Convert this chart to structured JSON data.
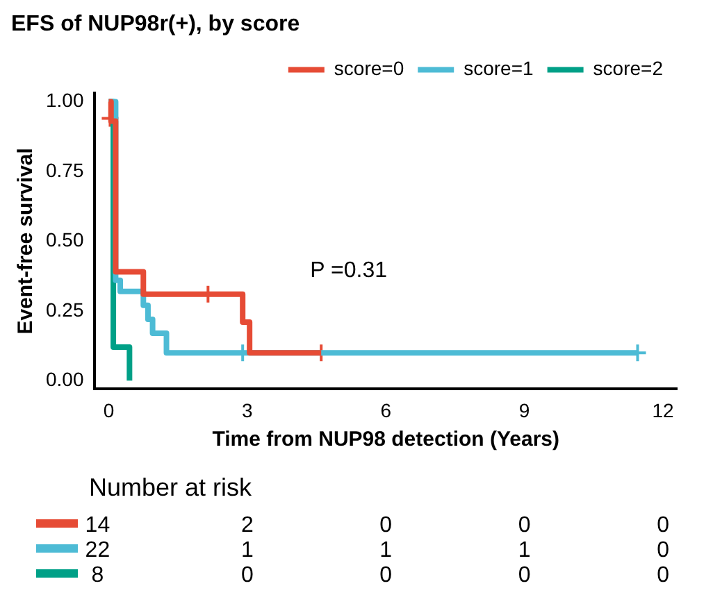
{
  "chart_data": {
    "type": "step",
    "title": "EFS of NUP98r(+), by score",
    "xlabel": "Time from NUP98 detection (Years)",
    "ylabel": "Event-free survival",
    "series": [
      {
        "name": "score=0",
        "color": "#e64b35",
        "x": [
          0,
          0.05,
          0.15,
          0.75,
          2.9,
          3.05,
          4.6
        ],
        "values": [
          1,
          0.93,
          0.39,
          0.31,
          0.21,
          0.1,
          0.1
        ]
      },
      {
        "name": "score=1",
        "color": "#4dbbd5",
        "x": [
          0,
          0.15,
          0.25,
          0.75,
          0.85,
          0.95,
          1.25,
          11.45
        ],
        "values": [
          1,
          0.36,
          0.32,
          0.27,
          0.22,
          0.17,
          0.1,
          0.1
        ]
      },
      {
        "name": "score=2",
        "color": "#00a087",
        "x": [
          0,
          0.1,
          0.45
        ],
        "values": [
          1,
          0.12,
          0
        ]
      },
      {
        "type": "scatter",
        "marker": "cross",
        "color": "#e64b35",
        "x": [
          0.03,
          2.15,
          4.6
        ],
        "values": [
          0.94,
          0.31,
          0.1
        ]
      },
      {
        "type": "scatter",
        "marker": "cross",
        "color": "#4dbbd5",
        "x": [
          2.9,
          11.45
        ],
        "values": [
          0.1,
          0.1
        ]
      }
    ],
    "xlim": [
      -0.3,
      12.3
    ],
    "xticks": [
      0,
      3,
      6,
      9,
      12
    ],
    "ylim": [
      -0.03,
      1.03
    ],
    "yticks": [
      {
        "value": 0,
        "label": "0.00"
      },
      {
        "value": 0.25,
        "label": "0.25"
      },
      {
        "value": 0.5,
        "label": "0.50"
      },
      {
        "value": 0.75,
        "label": "0.75"
      },
      {
        "value": 1,
        "label": "1.00"
      }
    ],
    "grid": false,
    "legend": "top right",
    "annotations": [
      "P =0.31",
      "Number at risk",
      "14",
      "2",
      "0",
      "0",
      "0",
      "22",
      "1",
      "1",
      "1",
      "0",
      "8",
      "0",
      "0",
      "0",
      "0"
    ]
  }
}
